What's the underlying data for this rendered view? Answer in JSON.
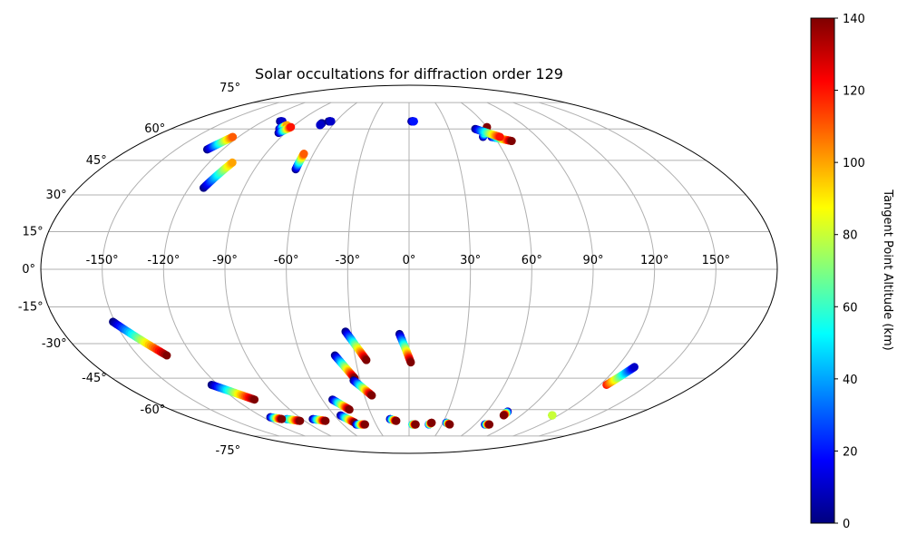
{
  "chart_data": {
    "type": "scatter",
    "projection": "mollweide",
    "title": "Solar occultations for diffraction order 129",
    "xlabel": "",
    "ylabel": "",
    "x_ticks": [
      "-150°",
      "-120°",
      "-90°",
      "-60°",
      "-30°",
      "0°",
      "30°",
      "60°",
      "90°",
      "120°",
      "150°"
    ],
    "x_tick_values": [
      -150,
      -120,
      -90,
      -60,
      -30,
      0,
      30,
      60,
      90,
      120,
      150
    ],
    "y_ticks": [
      "75°",
      "60°",
      "45°",
      "30°",
      "15°",
      "0°",
      "-15°",
      "-30°",
      "-45°",
      "-60°",
      "-75°"
    ],
    "y_tick_values": [
      75,
      60,
      45,
      30,
      15,
      0,
      -15,
      -30,
      -45,
      -60,
      -75
    ],
    "xlim": [
      -180,
      180
    ],
    "ylim": [
      -90,
      90
    ],
    "grid": true,
    "colorbar": {
      "label": "Tangent Point Altitude (km)",
      "colormap": "jet",
      "range": [
        0,
        140
      ],
      "ticks": [
        "0",
        "20",
        "40",
        "60",
        "80",
        "100",
        "120",
        "140"
      ],
      "tick_values": [
        0,
        20,
        40,
        60,
        80,
        100,
        120,
        140
      ]
    },
    "tracks": [
      {
        "start": [
          -106,
          64
        ],
        "end": [
          -104,
          64
        ],
        "alt_range": [
          0,
          10
        ]
      },
      {
        "start": [
          -98,
          60
        ],
        "end": [
          -96,
          62
        ],
        "alt_range": [
          0,
          100
        ]
      },
      {
        "start": [
          -95,
          58
        ],
        "end": [
          -91,
          61
        ],
        "alt_range": [
          0,
          120
        ]
      },
      {
        "start": [
          -130,
          50
        ],
        "end": [
          -124,
          56
        ],
        "alt_range": [
          0,
          110
        ]
      },
      {
        "start": [
          -112,
          33
        ],
        "end": [
          -106,
          44
        ],
        "alt_range": [
          0,
          100
        ]
      },
      {
        "start": [
          -66,
          41
        ],
        "end": [
          -66,
          48
        ],
        "alt_range": [
          0,
          110
        ]
      },
      {
        "start": [
          -70,
          63
        ],
        "end": [
          -70,
          62
        ],
        "alt_range": [
          0,
          10
        ]
      },
      {
        "start": [
          -66,
          64
        ],
        "end": [
          -64,
          64
        ],
        "alt_range": [
          0,
          10
        ]
      },
      {
        "start": [
          2,
          64
        ],
        "end": [
          4,
          64
        ],
        "alt_range": [
          0,
          20
        ]
      },
      {
        "start": [
          52,
          56
        ],
        "end": [
          60,
          61
        ],
        "alt_range": [
          0,
          140
        ]
      },
      {
        "start": [
          58,
          56
        ],
        "end": [
          70,
          54
        ],
        "alt_range": [
          10,
          140
        ]
      },
      {
        "start": [
          50,
          60
        ],
        "end": [
          64,
          56
        ],
        "alt_range": [
          0,
          120
        ]
      },
      {
        "start": [
          -151,
          -21
        ],
        "end": [
          -134,
          -35
        ],
        "alt_range": [
          0,
          140
        ]
      },
      {
        "start": [
          -124,
          -48
        ],
        "end": [
          -107,
          -55
        ],
        "alt_range": [
          0,
          140
        ]
      },
      {
        "start": [
          -41,
          -35
        ],
        "end": [
          -33,
          -45
        ],
        "alt_range": [
          0,
          140
        ]
      },
      {
        "start": [
          -33,
          -25
        ],
        "end": [
          -24,
          -37
        ],
        "alt_range": [
          0,
          140
        ]
      },
      {
        "start": [
          -34,
          -46
        ],
        "end": [
          -25,
          -53
        ],
        "alt_range": [
          0,
          140
        ]
      },
      {
        "start": [
          -5,
          -26
        ],
        "end": [
          1,
          -38
        ],
        "alt_range": [
          0,
          140
        ]
      },
      {
        "start": [
          -53,
          -55
        ],
        "end": [
          -45,
          -60
        ],
        "alt_range": [
          0,
          140
        ]
      },
      {
        "start": [
          -55,
          -63
        ],
        "end": [
          -48,
          -67
        ],
        "alt_range": [
          0,
          140
        ]
      },
      {
        "start": [
          -48,
          -68
        ],
        "end": [
          -40,
          -68
        ],
        "alt_range": [
          0,
          140
        ]
      },
      {
        "start": [
          -103,
          -65
        ],
        "end": [
          -94,
          -66
        ],
        "alt_range": [
          30,
          140
        ]
      },
      {
        "start": [
          -114,
          -64
        ],
        "end": [
          -107,
          -65
        ],
        "alt_range": [
          0,
          140
        ]
      },
      {
        "start": [
          -81,
          -65
        ],
        "end": [
          -72,
          -66
        ],
        "alt_range": [
          0,
          140
        ]
      },
      {
        "start": [
          -16,
          -65
        ],
        "end": [
          -11,
          -66
        ],
        "alt_range": [
          0,
          140
        ]
      },
      {
        "start": [
          3,
          -68
        ],
        "end": [
          6,
          -68
        ],
        "alt_range": [
          40,
          140
        ]
      },
      {
        "start": [
          18,
          -68
        ],
        "end": [
          20,
          -67
        ],
        "alt_range": [
          20,
          140
        ]
      },
      {
        "start": [
          33,
          -67
        ],
        "end": [
          37,
          -68
        ],
        "alt_range": [
          10,
          140
        ]
      },
      {
        "start": [
          69,
          -68
        ],
        "end": [
          73,
          -68
        ],
        "alt_range": [
          0,
          140
        ]
      },
      {
        "start": [
          76,
          -61
        ],
        "end": [
          76,
          -63
        ],
        "alt_range": [
          0,
          140
        ]
      },
      {
        "start": [
          115,
          -63
        ],
        "end": [
          115,
          -63
        ],
        "alt_range": [
          60,
          80
        ]
      },
      {
        "start": [
          124,
          -48
        ],
        "end": [
          130,
          -40
        ],
        "alt_range": [
          120,
          10
        ]
      }
    ]
  }
}
